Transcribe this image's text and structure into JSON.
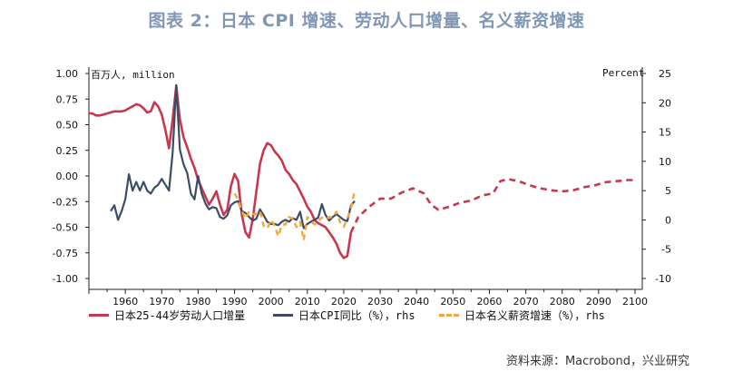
{
  "title": "图表 2：日本 CPI 增速、劳动人口增量、名义薪资增速",
  "source": "资料来源：Macrobond，兴业研究",
  "chart_data": {
    "type": "line",
    "left_axis": {
      "unit_label": "百万人, million",
      "ylim": [
        -1.0,
        1.0
      ],
      "ticks": [
        "1.00",
        "0.75",
        "0.50",
        "0.25",
        "0.00",
        "-0.25",
        "-0.50",
        "-0.75",
        "-1.00"
      ]
    },
    "right_axis": {
      "unit_label": "Percent",
      "ylim": [
        -10,
        25
      ],
      "ticks": [
        "25",
        "20",
        "15",
        "10",
        "5",
        "0",
        "-5",
        "-10"
      ]
    },
    "xlim": [
      1950,
      2102
    ],
    "x_ticks": [
      "1960",
      "1970",
      "1980",
      "1990",
      "2000",
      "2010",
      "2020",
      "2030",
      "2040",
      "2050",
      "2060",
      "2070",
      "2080",
      "2090",
      "2100"
    ],
    "grid": false,
    "legend_position": "bottom",
    "series": [
      {
        "name": "日本25-44岁劳动人口增量",
        "axis": "left",
        "color": "#c8374d",
        "style": "solid",
        "points": [
          [
            1950,
            0.61
          ],
          [
            1951,
            0.61
          ],
          [
            1952,
            0.59
          ],
          [
            1953,
            0.59
          ],
          [
            1954,
            0.6
          ],
          [
            1955,
            0.61
          ],
          [
            1956,
            0.62
          ],
          [
            1957,
            0.63
          ],
          [
            1958,
            0.63
          ],
          [
            1959,
            0.63
          ],
          [
            1960,
            0.64
          ],
          [
            1961,
            0.66
          ],
          [
            1962,
            0.68
          ],
          [
            1963,
            0.7
          ],
          [
            1964,
            0.69
          ],
          [
            1965,
            0.66
          ],
          [
            1966,
            0.62
          ],
          [
            1967,
            0.63
          ],
          [
            1968,
            0.72
          ],
          [
            1969,
            0.68
          ],
          [
            1970,
            0.6
          ],
          [
            1971,
            0.45
          ],
          [
            1972,
            0.27
          ],
          [
            1973,
            0.55
          ],
          [
            1974,
            0.88
          ],
          [
            1975,
            0.55
          ],
          [
            1976,
            0.38
          ],
          [
            1977,
            0.28
          ],
          [
            1978,
            0.17
          ],
          [
            1979,
            0.08
          ],
          [
            1980,
            -0.04
          ],
          [
            1981,
            -0.12
          ],
          [
            1982,
            -0.2
          ],
          [
            1983,
            -0.28
          ],
          [
            1984,
            -0.22
          ],
          [
            1985,
            -0.15
          ],
          [
            1986,
            -0.28
          ],
          [
            1987,
            -0.38
          ],
          [
            1988,
            -0.33
          ],
          [
            1989,
            -0.1
          ],
          [
            1990,
            0.02
          ],
          [
            1991,
            -0.05
          ],
          [
            1992,
            -0.38
          ],
          [
            1993,
            -0.55
          ],
          [
            1994,
            -0.6
          ],
          [
            1995,
            -0.42
          ],
          [
            1996,
            -0.15
          ],
          [
            1997,
            0.12
          ],
          [
            1998,
            0.25
          ],
          [
            1999,
            0.32
          ],
          [
            2000,
            0.3
          ],
          [
            2001,
            0.24
          ],
          [
            2002,
            0.2
          ],
          [
            2003,
            0.15
          ],
          [
            2004,
            0.06
          ],
          [
            2005,
            0.02
          ],
          [
            2006,
            -0.04
          ],
          [
            2007,
            -0.08
          ],
          [
            2008,
            -0.15
          ],
          [
            2009,
            -0.22
          ],
          [
            2010,
            -0.3
          ],
          [
            2011,
            -0.35
          ],
          [
            2012,
            -0.43
          ],
          [
            2013,
            -0.46
          ],
          [
            2014,
            -0.48
          ],
          [
            2015,
            -0.5
          ],
          [
            2016,
            -0.55
          ],
          [
            2017,
            -0.6
          ],
          [
            2018,
            -0.66
          ],
          [
            2019,
            -0.75
          ],
          [
            2020,
            -0.8
          ],
          [
            2021,
            -0.78
          ],
          [
            2022,
            -0.55
          ]
        ]
      },
      {
        "name": "日本25-44岁劳动人口增量",
        "axis": "left",
        "color": "#c8374d",
        "style": "dashed",
        "points": [
          [
            2022,
            -0.55
          ],
          [
            2024,
            -0.4
          ],
          [
            2027,
            -0.3
          ],
          [
            2030,
            -0.22
          ],
          [
            2033,
            -0.22
          ],
          [
            2036,
            -0.16
          ],
          [
            2039,
            -0.12
          ],
          [
            2042,
            -0.17
          ],
          [
            2044,
            -0.28
          ],
          [
            2046,
            -0.33
          ],
          [
            2049,
            -0.3
          ],
          [
            2052,
            -0.26
          ],
          [
            2055,
            -0.24
          ],
          [
            2058,
            -0.19
          ],
          [
            2061,
            -0.17
          ],
          [
            2063,
            -0.05
          ],
          [
            2065,
            -0.03
          ],
          [
            2068,
            -0.05
          ],
          [
            2071,
            -0.09
          ],
          [
            2074,
            -0.12
          ],
          [
            2077,
            -0.14
          ],
          [
            2080,
            -0.15
          ],
          [
            2083,
            -0.14
          ],
          [
            2086,
            -0.11
          ],
          [
            2089,
            -0.09
          ],
          [
            2092,
            -0.06
          ],
          [
            2095,
            -0.05
          ],
          [
            2098,
            -0.04
          ],
          [
            2100,
            -0.04
          ]
        ]
      },
      {
        "name": "日本CPI同比（%），rhs",
        "axis": "right",
        "color": "#3b4d66",
        "style": "solid",
        "points": [
          [
            1956,
            1.5
          ],
          [
            1957,
            2.5
          ],
          [
            1958,
            0.0
          ],
          [
            1959,
            1.5
          ],
          [
            1960,
            3.5
          ],
          [
            1961,
            7.8
          ],
          [
            1962,
            5.0
          ],
          [
            1963,
            6.5
          ],
          [
            1964,
            5.0
          ],
          [
            1965,
            6.5
          ],
          [
            1966,
            5.0
          ],
          [
            1967,
            4.5
          ],
          [
            1968,
            5.5
          ],
          [
            1969,
            6.0
          ],
          [
            1970,
            7.0
          ],
          [
            1971,
            6.0
          ],
          [
            1972,
            5.0
          ],
          [
            1973,
            11.5
          ],
          [
            1974,
            23.0
          ],
          [
            1975,
            12.0
          ],
          [
            1976,
            9.5
          ],
          [
            1977,
            8.0
          ],
          [
            1978,
            4.5
          ],
          [
            1979,
            3.5
          ],
          [
            1980,
            7.5
          ],
          [
            1981,
            4.5
          ],
          [
            1982,
            2.8
          ],
          [
            1983,
            1.8
          ],
          [
            1984,
            2.2
          ],
          [
            1985,
            2.0
          ],
          [
            1986,
            0.5
          ],
          [
            1987,
            0.2
          ],
          [
            1988,
            0.8
          ],
          [
            1989,
            2.5
          ],
          [
            1990,
            3.0
          ],
          [
            1991,
            3.2
          ],
          [
            1992,
            1.5
          ],
          [
            1993,
            1.2
          ],
          [
            1994,
            0.5
          ],
          [
            1995,
            -0.1
          ],
          [
            1996,
            0.2
          ],
          [
            1997,
            1.8
          ],
          [
            1998,
            0.8
          ],
          [
            1999,
            -0.3
          ],
          [
            2000,
            -0.7
          ],
          [
            2001,
            -0.7
          ],
          [
            2002,
            -0.9
          ],
          [
            2003,
            -0.3
          ],
          [
            2004,
            0.0
          ],
          [
            2005,
            -0.3
          ],
          [
            2006,
            0.3
          ],
          [
            2007,
            0.0
          ],
          [
            2008,
            1.4
          ],
          [
            2009,
            -1.4
          ],
          [
            2010,
            -0.7
          ],
          [
            2011,
            -0.3
          ],
          [
            2012,
            0.0
          ],
          [
            2013,
            0.4
          ],
          [
            2014,
            2.7
          ],
          [
            2015,
            0.8
          ],
          [
            2016,
            -0.1
          ],
          [
            2017,
            0.5
          ],
          [
            2018,
            1.0
          ],
          [
            2019,
            0.5
          ],
          [
            2020,
            0.0
          ],
          [
            2021,
            -0.2
          ],
          [
            2022,
            2.5
          ],
          [
            2023,
            3.2
          ]
        ]
      },
      {
        "name": "日本名义薪资增速（%），rhs",
        "axis": "right",
        "color": "#f2a73b",
        "style": "dashed",
        "points": [
          [
            1990,
            4.5
          ],
          [
            1991,
            3.5
          ],
          [
            1992,
            1.5
          ],
          [
            1993,
            0.2
          ],
          [
            1994,
            1.5
          ],
          [
            1995,
            1.0
          ],
          [
            1996,
            1.0
          ],
          [
            1997,
            1.5
          ],
          [
            1998,
            -1.0
          ],
          [
            1999,
            -1.5
          ],
          [
            2000,
            0.0
          ],
          [
            2001,
            -1.0
          ],
          [
            2002,
            -2.8
          ],
          [
            2003,
            -0.8
          ],
          [
            2004,
            -0.8
          ],
          [
            2005,
            0.5
          ],
          [
            2006,
            0.2
          ],
          [
            2007,
            -1.2
          ],
          [
            2008,
            -0.3
          ],
          [
            2009,
            -3.5
          ],
          [
            2010,
            0.5
          ],
          [
            2011,
            -0.2
          ],
          [
            2012,
            -0.8
          ],
          [
            2013,
            -0.2
          ],
          [
            2014,
            0.4
          ],
          [
            2015,
            0.1
          ],
          [
            2016,
            0.5
          ],
          [
            2017,
            0.4
          ],
          [
            2018,
            1.4
          ],
          [
            2019,
            -0.4
          ],
          [
            2020,
            -1.2
          ],
          [
            2021,
            0.3
          ],
          [
            2022,
            2.0
          ],
          [
            2023,
            5.0
          ]
        ]
      }
    ]
  },
  "legend": {
    "items": [
      {
        "label": "日本25-44岁劳动人口增量",
        "color": "#c8374d",
        "style": "solid"
      },
      {
        "label": "日本CPI同比（%），rhs",
        "color": "#3b4d66",
        "style": "solid"
      },
      {
        "label": "日本名义薪资增速（%），rhs",
        "color": "#f2a73b",
        "style": "dashed"
      }
    ]
  }
}
